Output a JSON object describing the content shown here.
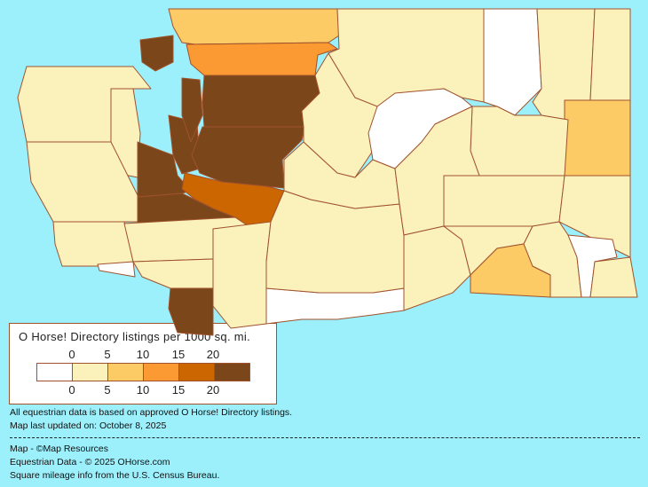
{
  "legend": {
    "title": "O Horse! Directory listings per 1000 sq. mi.",
    "ticks": [
      "0",
      "5",
      "10",
      "15",
      "20"
    ],
    "classes": [
      {
        "range": "0",
        "color": "#FFFFFF"
      },
      {
        "range": "0-5",
        "color": "#FBF1BB"
      },
      {
        "range": "5-10",
        "color": "#FCCB66"
      },
      {
        "range": "10-15",
        "color": "#FB9933"
      },
      {
        "range": "15-20",
        "color": "#CC6600"
      },
      {
        "range": "20+",
        "color": "#7B4619"
      }
    ]
  },
  "notes": {
    "basis": "All equestrian data is based on approved O Horse! Directory listings.",
    "updated": "Map last updated on: October 8, 2025",
    "credit_map": "Map - ©Map Resources",
    "credit_data": "Equestrian Data - © 2025 OHorse.com",
    "credit_census": "Square mileage info from the U.S. Census Bureau."
  },
  "colors": {
    "water": "#9CF0FC",
    "border": "#A0522D"
  },
  "counties": {
    "Whatcom": 2,
    "Skagit": 3,
    "Snohomish": 5,
    "King": 5,
    "Pierce": 4,
    "Kitsap": 5,
    "Mason": 5,
    "Island": 5,
    "San Juan": 5,
    "Okanogan": 1,
    "Ferry": 0,
    "Stevens": 1,
    "Pend Oreille": 1,
    "Spokane": 2,
    "Chelan": 1,
    "Douglas": 0,
    "Lincoln": 1,
    "Grant": 1,
    "Kittitas": 1,
    "Yakima": 1,
    "Adams": 1,
    "Whitman": 1,
    "Benton": 1,
    "Franklin": 1,
    "Walla Walla": 2,
    "Columbia": 1,
    "Garfield": 0,
    "Asotin": 1,
    "Klickitat": 0,
    "Skamania": 1,
    "Clark": 5,
    "Cowlitz": 1,
    "Lewis": 1,
    "Thurston": 5,
    "Grays Harbor": 1,
    "Pacific": 1,
    "Wahkiakum": 0,
    "Jefferson": 1,
    "Clallam": 1
  }
}
